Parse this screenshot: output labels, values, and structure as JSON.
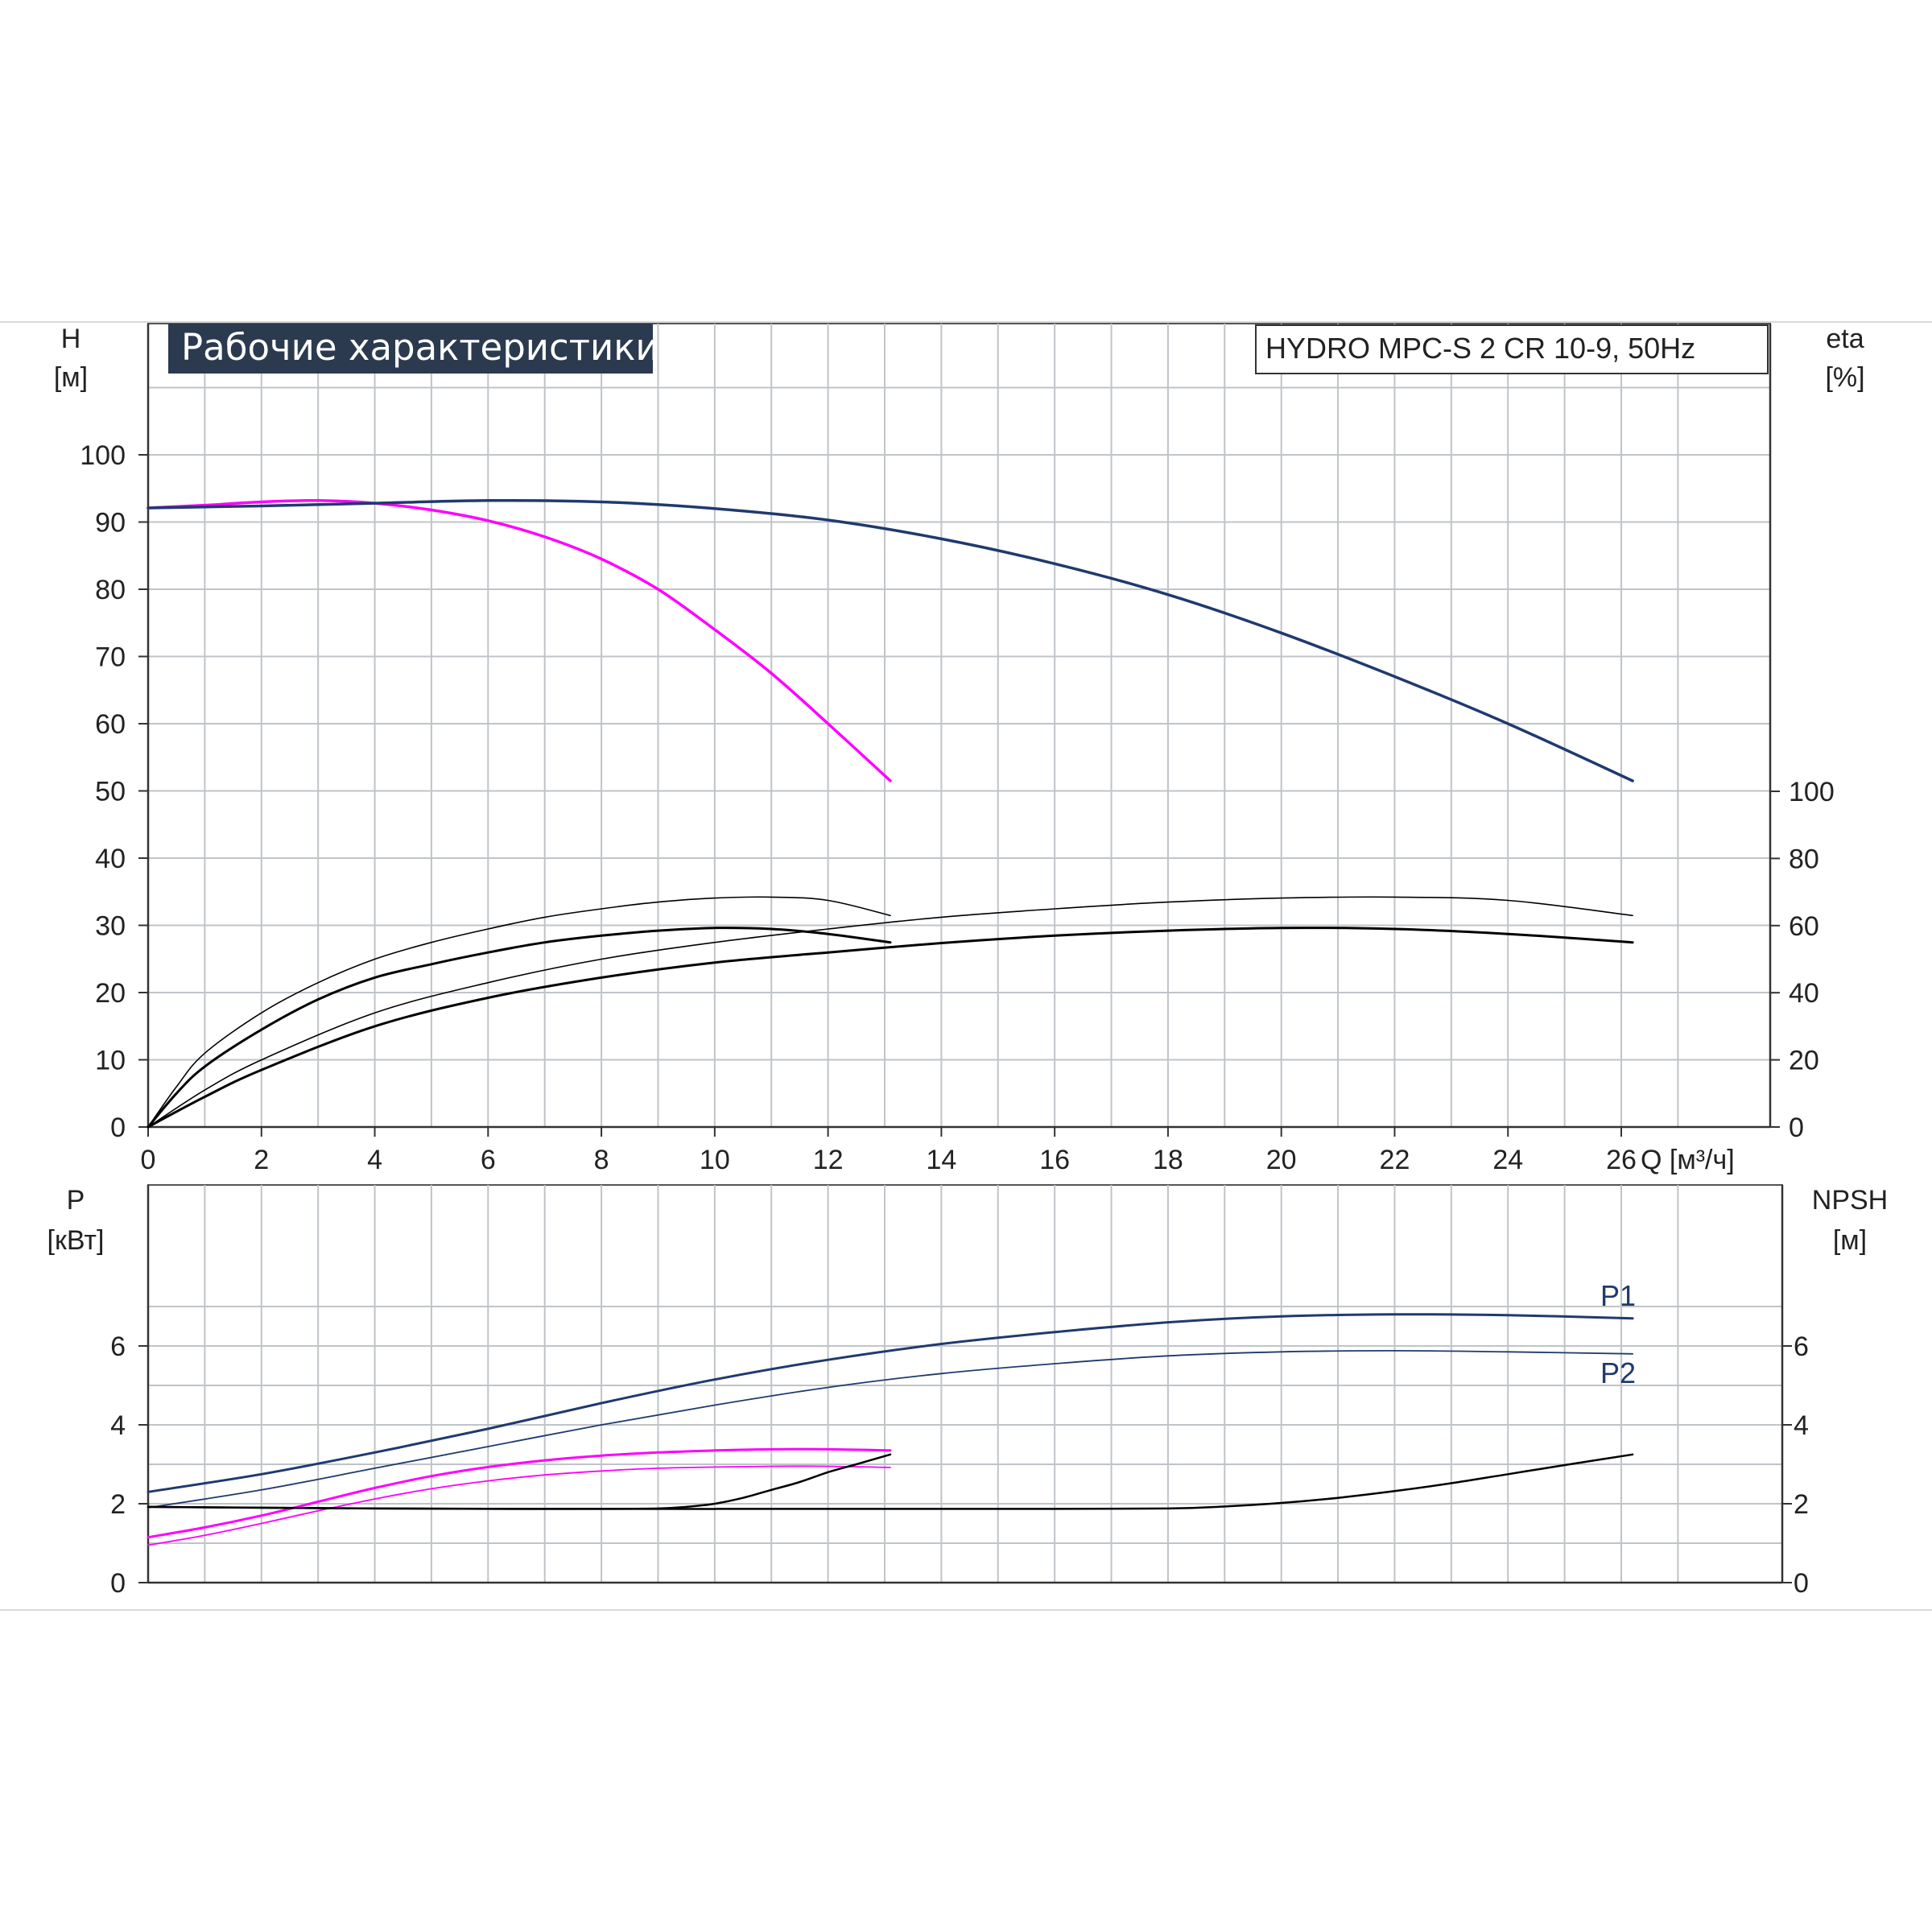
{
  "chart_data": [
    {
      "type": "line",
      "title": "Рабочие характеристики",
      "model_label": "HYDRO MPC-S 2 CR 10-9, 50Hz",
      "xlabel": "Q [м³/ч]",
      "ylabel_left": "H",
      "ylabel_left_unit": "[м]",
      "ylabel_right": "eta",
      "ylabel_right_unit": "[%]",
      "xlim": [
        0,
        28
      ],
      "ylim_left": [
        0,
        110
      ],
      "ylim_right": [
        0,
        220
      ],
      "x_ticks": [
        "0",
        "2",
        "4",
        "6",
        "8",
        "10",
        "12",
        "14",
        "16",
        "18",
        "20",
        "22",
        "24",
        "26"
      ],
      "y_ticks_left": [
        "0",
        "10",
        "20",
        "30",
        "40",
        "50",
        "60",
        "70",
        "80",
        "90",
        "100"
      ],
      "y_ticks_right": [
        "0",
        "20",
        "40",
        "60",
        "80",
        "100"
      ],
      "grid": true,
      "series": [
        {
          "axis": "left",
          "color": "#ff00ff",
          "width": 3.5,
          "x": [
            0,
            1,
            2,
            3,
            4,
            5,
            6,
            7,
            8,
            9,
            10,
            11,
            12,
            13.1
          ],
          "y": [
            92.1,
            92.5,
            93.0,
            93.2,
            92.8,
            91.8,
            90.2,
            87.8,
            84.5,
            80.0,
            74.0,
            67.5,
            60.0,
            51.5
          ]
        },
        {
          "axis": "left",
          "color": "#1f3a6e",
          "width": 3.5,
          "x": [
            0,
            2,
            4,
            6,
            8,
            10,
            12,
            14,
            16,
            18,
            20,
            22,
            24,
            26.2
          ],
          "y": [
            92.1,
            92.4,
            92.8,
            93.2,
            93.0,
            92.0,
            90.3,
            87.5,
            83.8,
            79.2,
            73.5,
            67.0,
            60.0,
            51.5
          ]
        },
        {
          "axis": "right",
          "color": "#000000",
          "width": 1.6,
          "x": [
            0,
            0.5,
            1,
            2,
            3,
            4,
            5,
            6,
            7,
            8,
            9,
            10,
            11,
            12,
            13.1
          ],
          "y": [
            0,
            12,
            22,
            34,
            43,
            50,
            55,
            59,
            62.5,
            65,
            67,
            68.2,
            68.5,
            67.5,
            63
          ]
        },
        {
          "axis": "right",
          "color": "#000000",
          "width": 3.0,
          "x": [
            0,
            0.5,
            1,
            2,
            3,
            4,
            5,
            6,
            7,
            8,
            9,
            10,
            11,
            12,
            13.1
          ],
          "y": [
            0,
            10,
            18,
            29,
            38,
            44.5,
            48.5,
            52,
            55,
            57,
            58.5,
            59.3,
            59.0,
            57.5,
            55
          ]
        },
        {
          "axis": "right",
          "color": "#000000",
          "width": 1.6,
          "x": [
            0,
            1,
            2,
            4,
            6,
            8,
            10,
            12,
            14,
            16,
            18,
            20,
            22,
            24,
            26.2
          ],
          "y": [
            0,
            11,
            20,
            34,
            43,
            50,
            55,
            59,
            62.5,
            65,
            67,
            68.2,
            68.5,
            67.5,
            63
          ]
        },
        {
          "axis": "right",
          "color": "#000000",
          "width": 3.0,
          "x": [
            0,
            1,
            2,
            4,
            6,
            8,
            10,
            12,
            14,
            16,
            18,
            20,
            22,
            24,
            26.2
          ],
          "y": [
            0,
            9,
            17,
            30,
            38.5,
            44.5,
            49,
            52,
            54.8,
            57,
            58.5,
            59.3,
            59.0,
            57.5,
            55
          ]
        }
      ]
    },
    {
      "type": "line",
      "ylabel_left": "P",
      "ylabel_left_unit": "[кВт]",
      "ylabel_right": "NPSH",
      "ylabel_right_unit": "[м]",
      "xlim": [
        0,
        28
      ],
      "ylim_left": [
        0,
        8
      ],
      "ylim_right": [
        0,
        8
      ],
      "y_ticks_left": [
        "0",
        "2",
        "4",
        "6"
      ],
      "y_ticks_right": [
        "0",
        "2",
        "4",
        "6"
      ],
      "grid": true,
      "series": [
        {
          "name": "P1",
          "axis": "left",
          "color": "#1f3a6e",
          "width": 3.0,
          "x": [
            0,
            2,
            4,
            6,
            8,
            10,
            12,
            14,
            16,
            18,
            20,
            22,
            24,
            26.2
          ],
          "y": [
            2.3,
            2.75,
            3.3,
            3.9,
            4.55,
            5.15,
            5.65,
            6.05,
            6.35,
            6.6,
            6.75,
            6.8,
            6.78,
            6.7
          ]
        },
        {
          "name": "P2",
          "axis": "left",
          "color": "#1f3a6e",
          "width": 1.8,
          "x": [
            0,
            2,
            4,
            6,
            8,
            10,
            12,
            14,
            16,
            18,
            20,
            22,
            24,
            26.2
          ],
          "y": [
            1.9,
            2.35,
            2.9,
            3.45,
            4.0,
            4.5,
            4.95,
            5.3,
            5.55,
            5.75,
            5.85,
            5.88,
            5.85,
            5.8
          ]
        },
        {
          "axis": "left",
          "color": "#ff00ff",
          "width": 3.0,
          "x": [
            0,
            1,
            2,
            3,
            4,
            5,
            6,
            7,
            8,
            9,
            10,
            11,
            12,
            13.1
          ],
          "y": [
            1.15,
            1.4,
            1.7,
            2.05,
            2.4,
            2.7,
            2.93,
            3.1,
            3.22,
            3.3,
            3.35,
            3.38,
            3.38,
            3.35
          ]
        },
        {
          "axis": "left",
          "color": "#ff00ff",
          "width": 1.8,
          "x": [
            0,
            1,
            2,
            3,
            4,
            5,
            6,
            7,
            8,
            9,
            10,
            11,
            12,
            13.1
          ],
          "y": [
            0.95,
            1.2,
            1.5,
            1.82,
            2.12,
            2.38,
            2.58,
            2.73,
            2.83,
            2.9,
            2.93,
            2.95,
            2.95,
            2.92
          ]
        },
        {
          "axis": "right",
          "color": "#000000",
          "width": 2.5,
          "x": [
            0,
            2,
            4,
            6,
            8,
            9,
            9.5,
            10,
            10.5,
            11,
            11.5,
            12,
            12.5,
            13.1
          ],
          "y": [
            1.92,
            1.9,
            1.88,
            1.87,
            1.87,
            1.88,
            1.92,
            2.0,
            2.15,
            2.35,
            2.55,
            2.8,
            3.0,
            3.25
          ]
        },
        {
          "axis": "right",
          "color": "#000000",
          "width": 2.5,
          "x": [
            0,
            4,
            8,
            12,
            16,
            18,
            19,
            20,
            21,
            22,
            23,
            24,
            25,
            26.2
          ],
          "y": [
            1.92,
            1.88,
            1.87,
            1.87,
            1.87,
            1.88,
            1.93,
            2.02,
            2.15,
            2.32,
            2.52,
            2.75,
            2.98,
            3.25
          ]
        }
      ],
      "curve_labels": [
        "P1",
        "P2"
      ]
    }
  ]
}
